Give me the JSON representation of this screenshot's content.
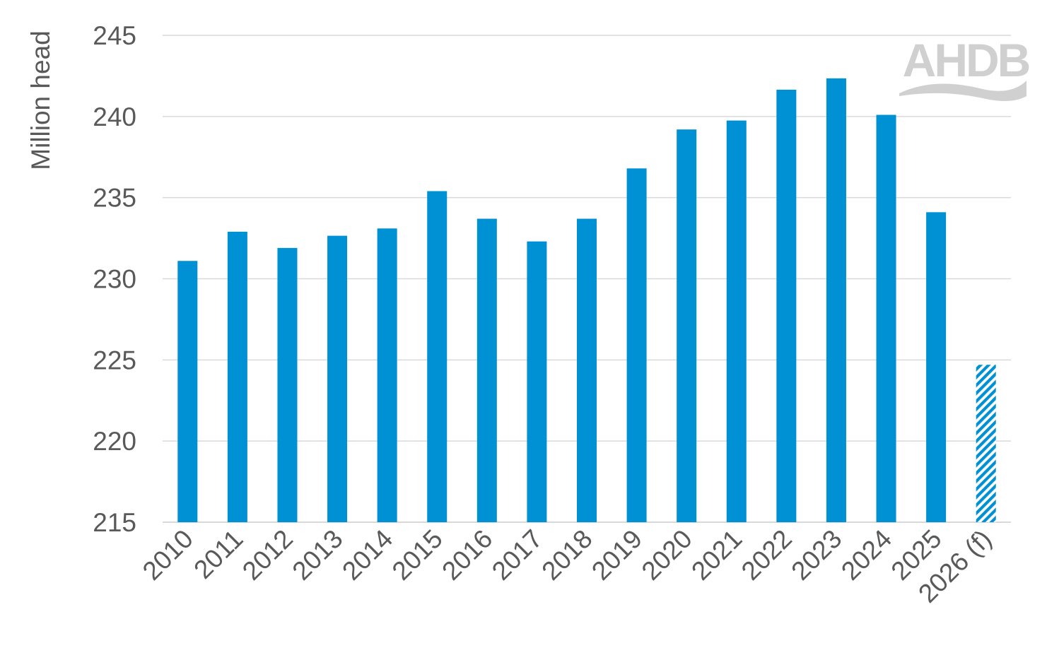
{
  "chart_data": {
    "type": "bar",
    "title": "",
    "xlabel": "",
    "ylabel": "Million head",
    "ylim": [
      215,
      245
    ],
    "yticks": [
      215,
      220,
      225,
      230,
      235,
      240,
      245
    ],
    "grid": true,
    "legend": "none",
    "categories": [
      "2010",
      "2011",
      "2012",
      "2013",
      "2014",
      "2015",
      "2016",
      "2017",
      "2018",
      "2019",
      "2020",
      "2021",
      "2022",
      "2023",
      "2024",
      "2025",
      "2026 (f)"
    ],
    "values": [
      231.1,
      232.9,
      231.9,
      232.65,
      233.1,
      235.4,
      233.7,
      232.3,
      233.7,
      236.8,
      239.2,
      239.75,
      241.65,
      242.35,
      240.1,
      234.1,
      224.7
    ],
    "forecast_categories": [
      "2026 (f)"
    ],
    "colors": {
      "bar": "#0090d4",
      "grid": "#d9d9d9",
      "text": "#595959",
      "logo": "#d0d0d0"
    }
  },
  "logo": {
    "text": "AHDB"
  }
}
